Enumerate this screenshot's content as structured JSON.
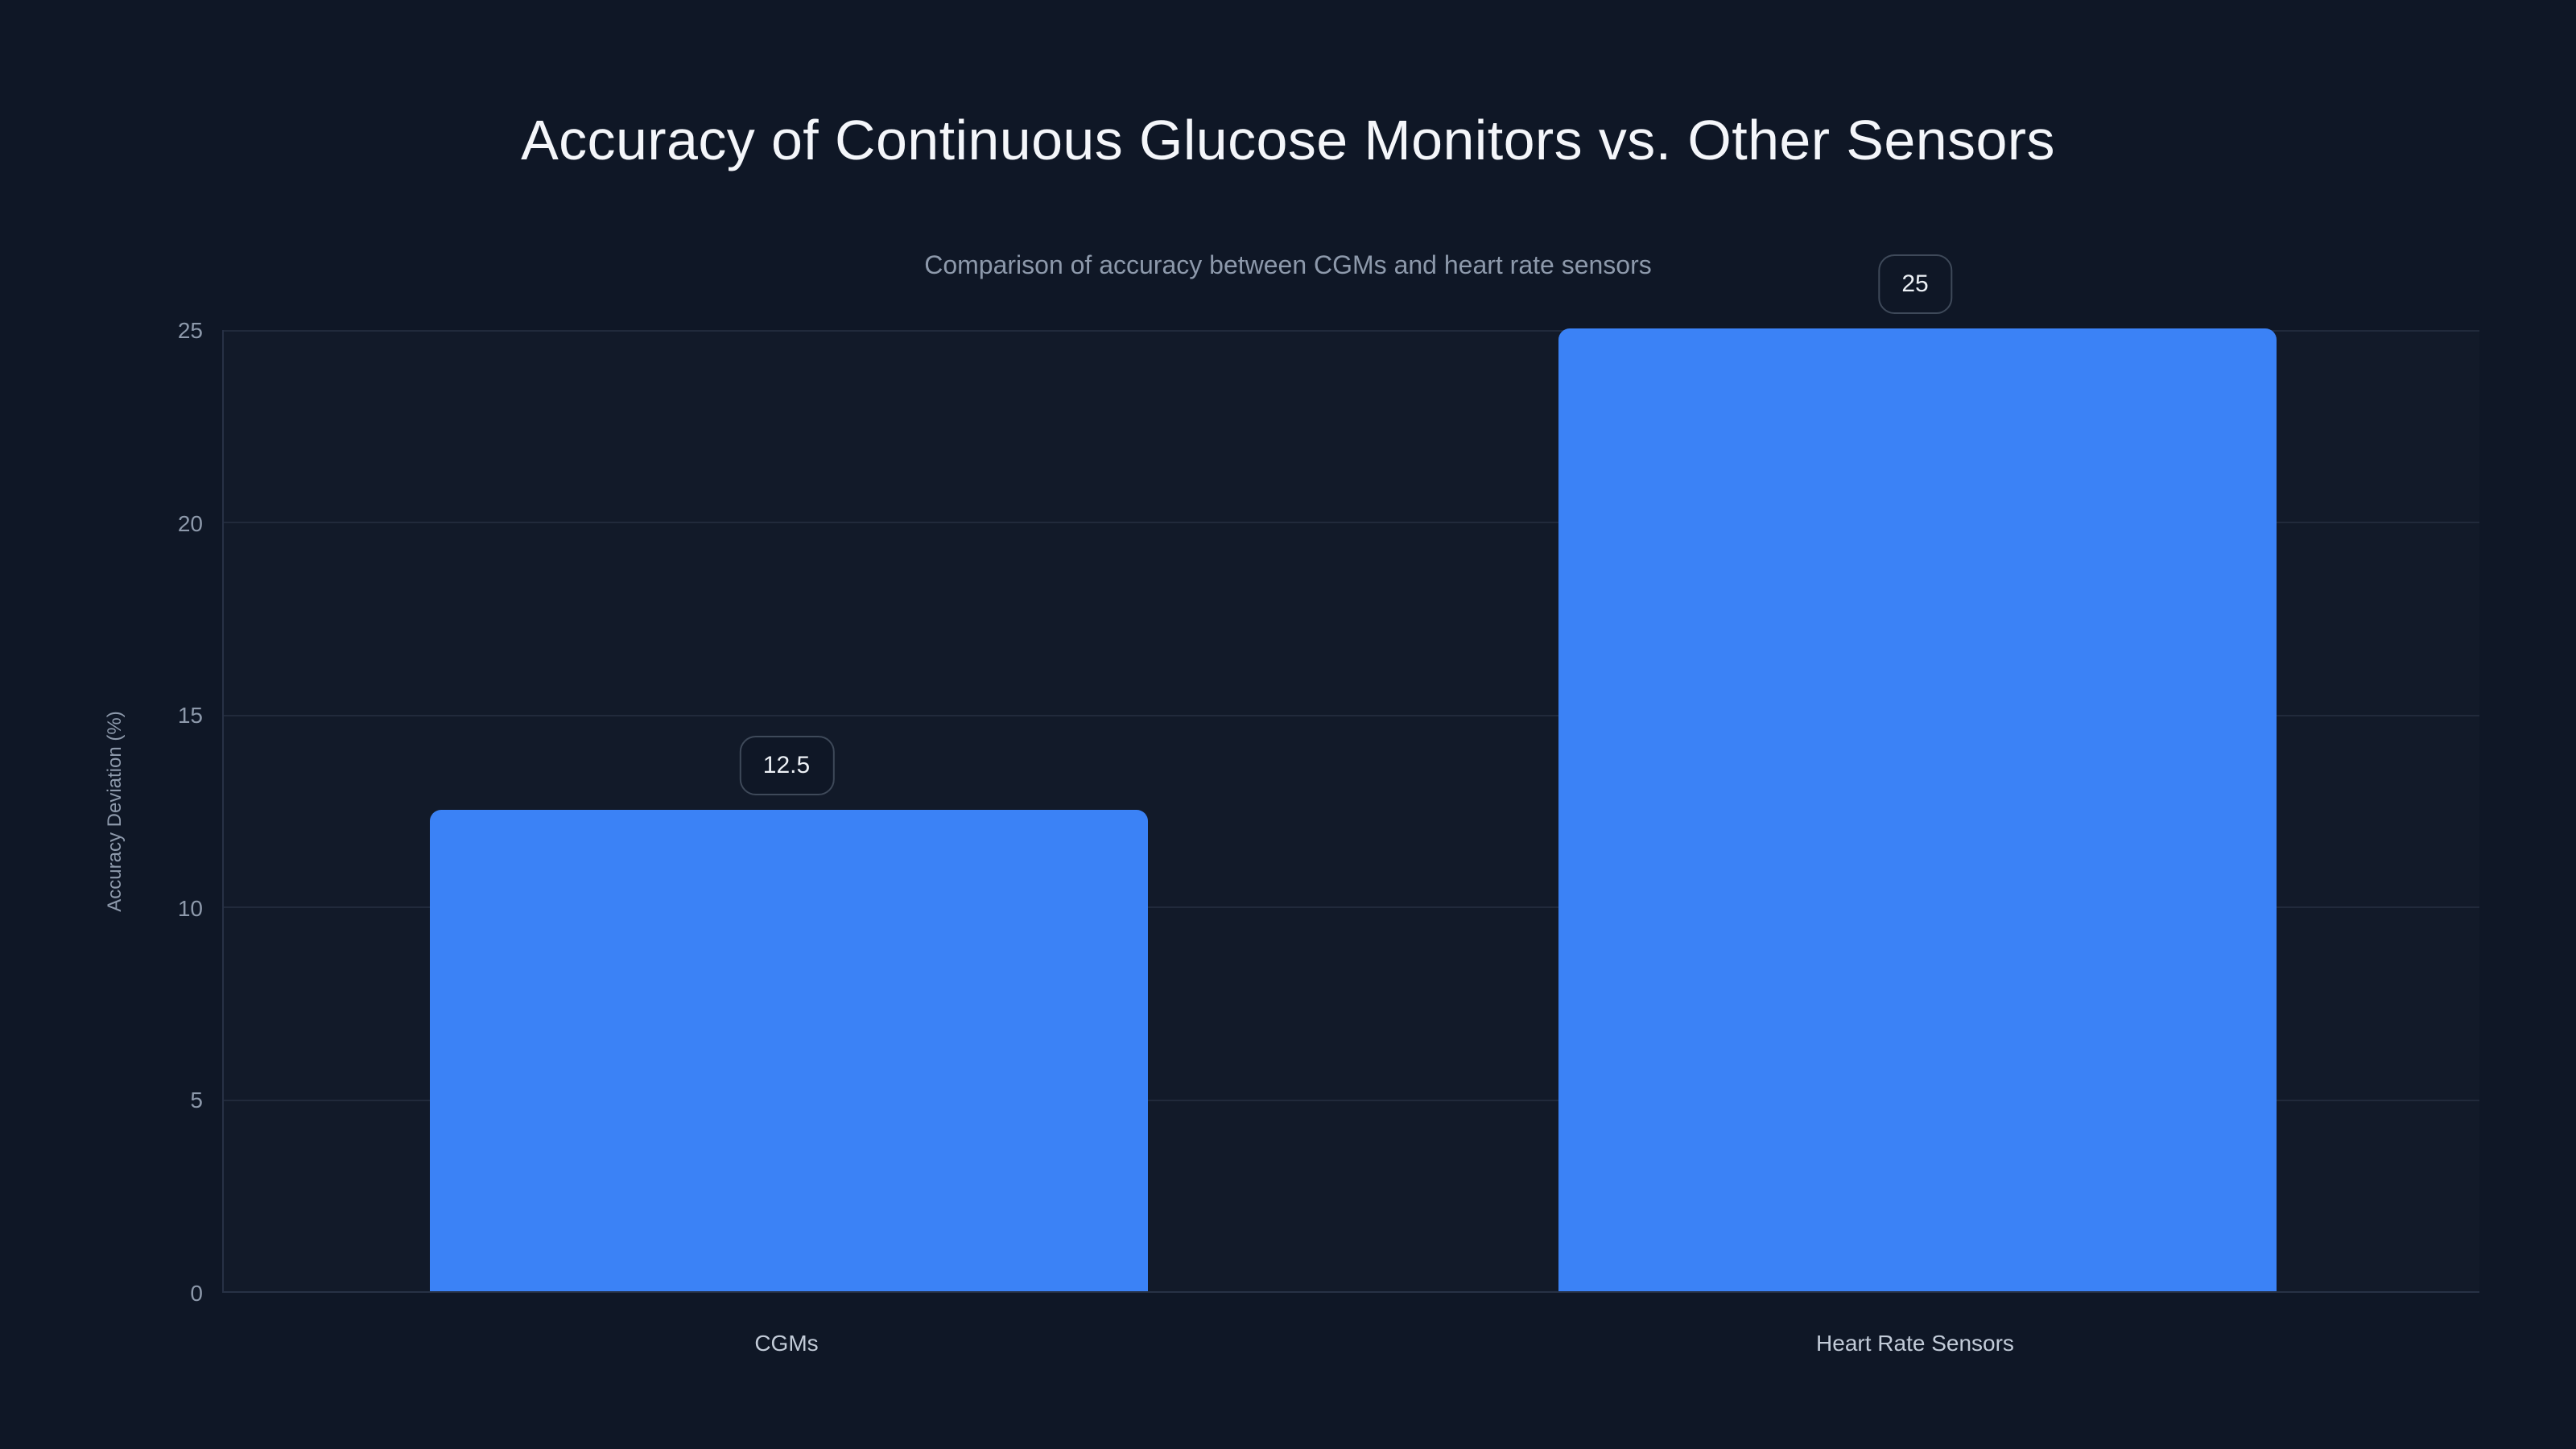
{
  "page": {
    "background": "#0f1726"
  },
  "colors": {
    "background": "#0f1726",
    "bar": "#3b82f6",
    "grid_line": "#212a3b",
    "axis_line": "#273145",
    "title_text": "#f4f6fa",
    "muted_text": "#8d99ab",
    "category_text": "#c2cbd8",
    "value_text": "#edf1f6",
    "value_box_border": "#3e4959"
  },
  "chart_data": {
    "type": "bar",
    "title": "Accuracy of Continuous Glucose Monitors vs. Other Sensors",
    "subtitle": "Comparison of accuracy between CGMs and heart rate sensors",
    "xlabel": "",
    "ylabel": "Accuracy Deviation (%)",
    "categories": [
      "CGMs",
      "Heart Rate Sensors"
    ],
    "values": [
      12.5,
      25
    ],
    "value_labels": [
      "12.5",
      "25"
    ],
    "yticks": [
      0,
      5,
      10,
      15,
      20,
      25
    ],
    "ylim": [
      0,
      25
    ],
    "grid": "horizontal-on",
    "legend": "none",
    "orientation": "vertical",
    "bar_color": "#3b82f6"
  }
}
